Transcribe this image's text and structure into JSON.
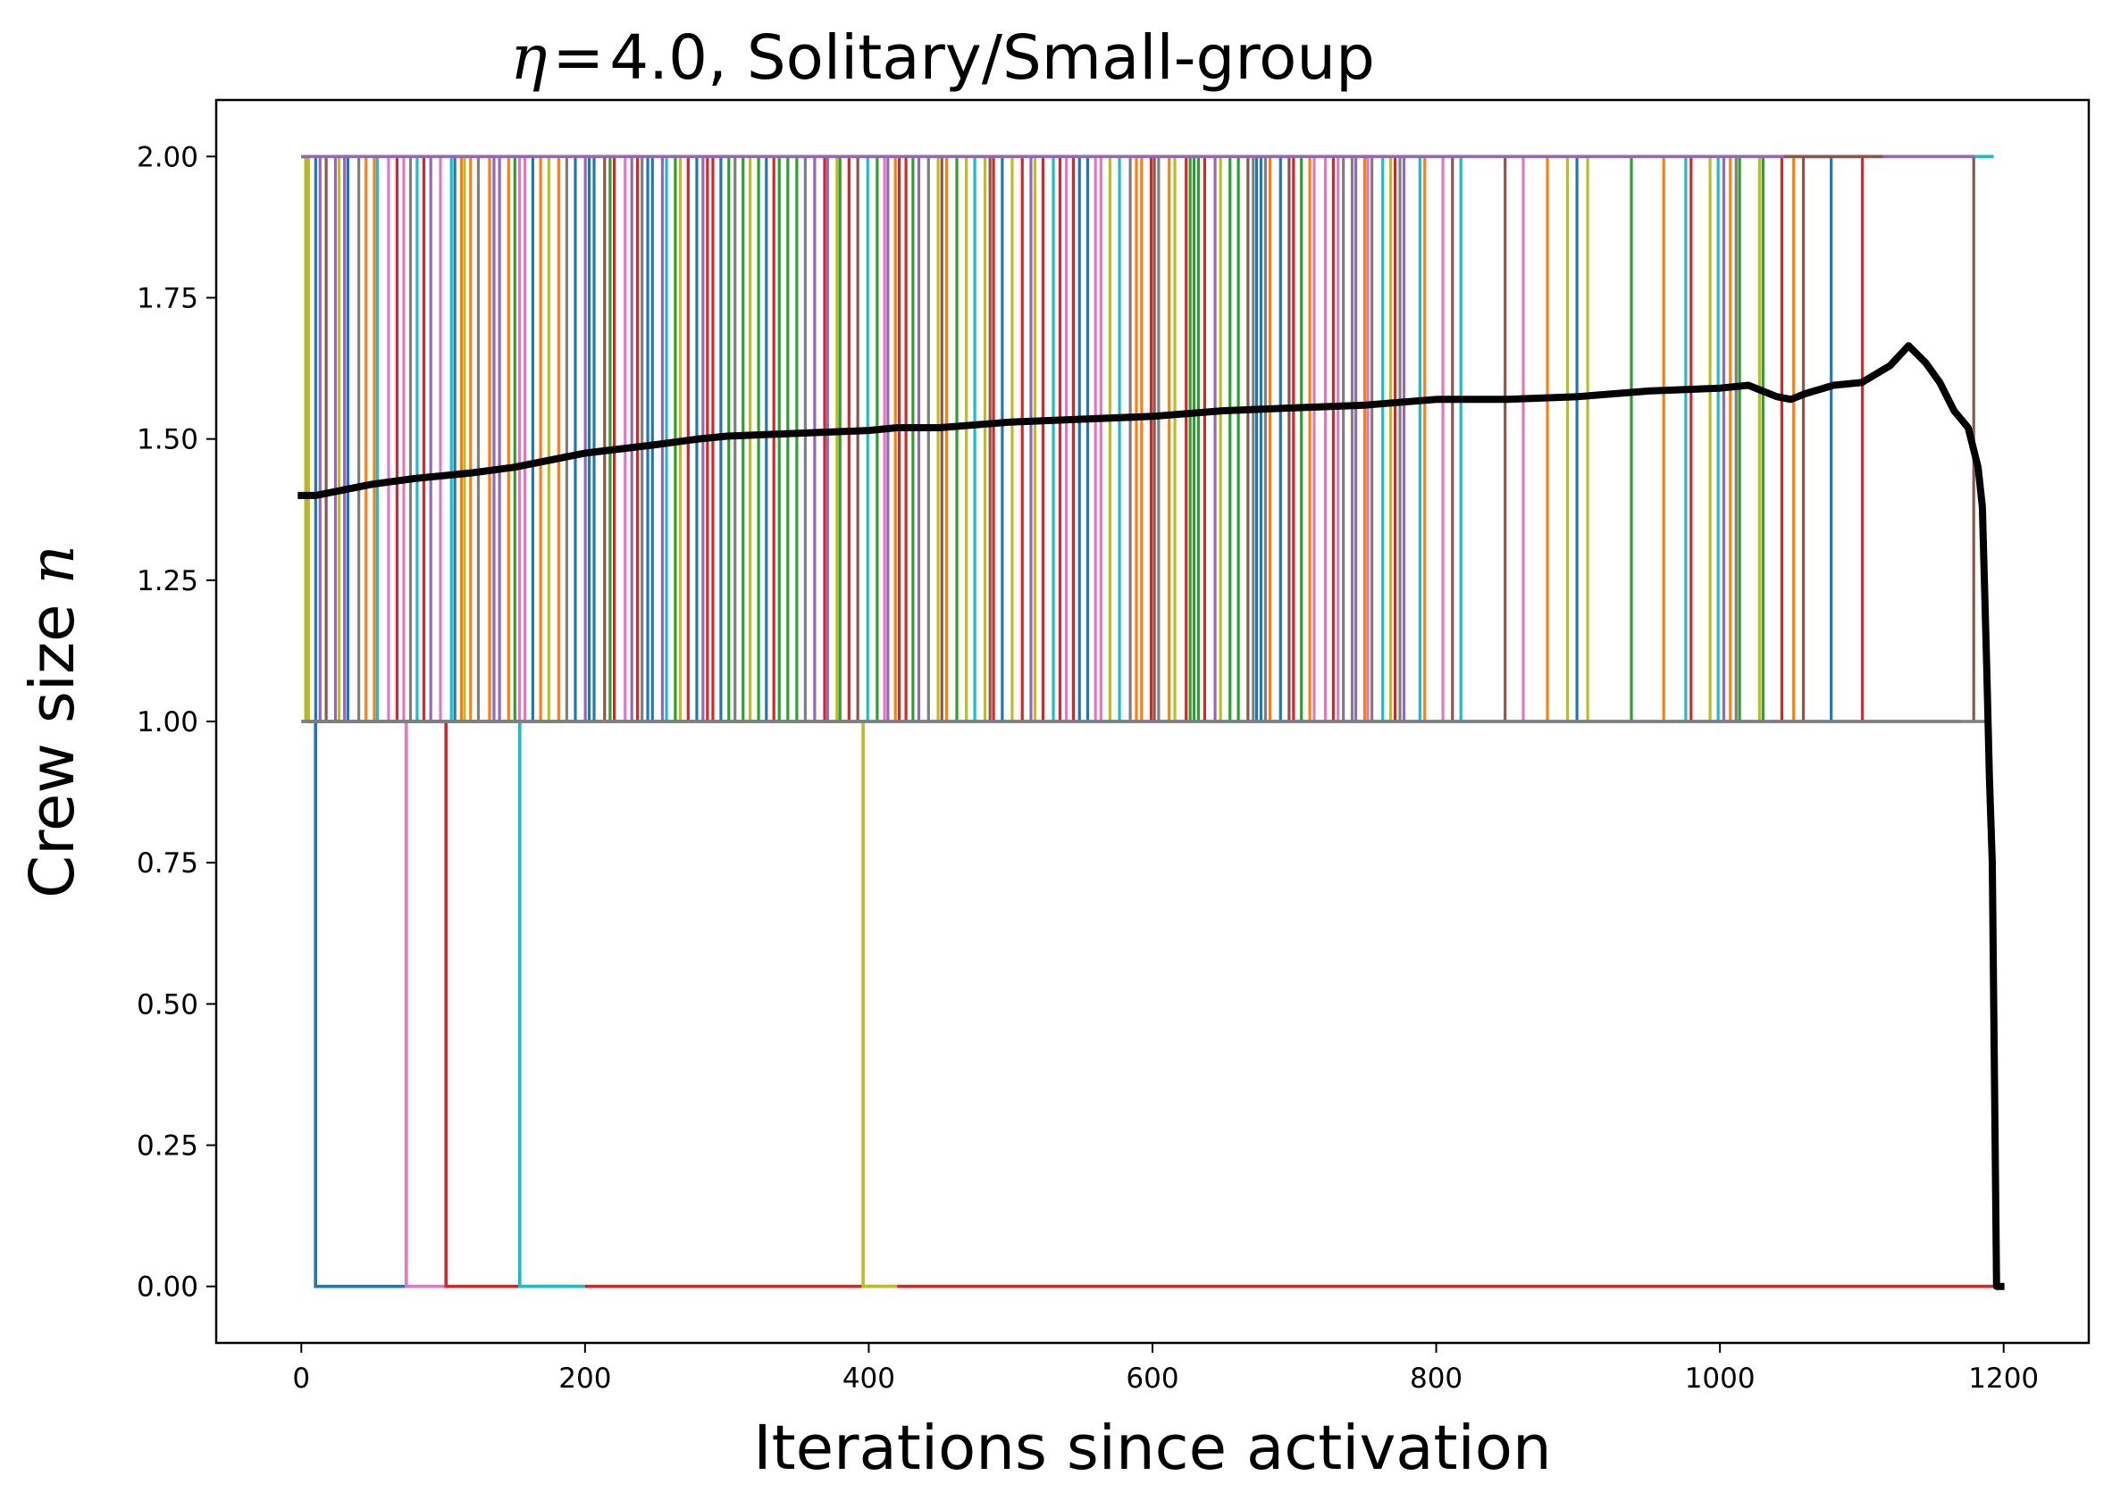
{
  "chart_data": {
    "type": "line",
    "title": {
      "symbol": "η",
      "equals": "=",
      "text": "4.0, Solitary/Small-group"
    },
    "xlabel": "Iterations since activation",
    "ylabel": {
      "text": "Crew size ",
      "symbol": "n"
    },
    "xlim": [
      -60,
      1260
    ],
    "ylim": [
      -0.1,
      2.1
    ],
    "xticks": [
      0,
      200,
      400,
      600,
      800,
      1000,
      1200
    ],
    "xtick_labels": [
      "0",
      "200",
      "400",
      "600",
      "800",
      "1000",
      "1200"
    ],
    "yticks": [
      0.0,
      0.25,
      0.5,
      0.75,
      1.0,
      1.25,
      1.5,
      1.75,
      2.0
    ],
    "ytick_labels": [
      "0.00",
      "0.25",
      "0.50",
      "0.75",
      "1.00",
      "1.25",
      "1.50",
      "1.75",
      "2.00"
    ],
    "grid": false,
    "palette": [
      "#1f77b4",
      "#ff7f0e",
      "#2ca02c",
      "#d62728",
      "#9467bd",
      "#8c564b",
      "#e377c2",
      "#7f7f7f",
      "#bcbd22",
      "#17becf"
    ],
    "series": [
      {
        "color": "#1f77b4",
        "points": [
          [
            0,
            2
          ],
          [
            5,
            2
          ],
          [
            5,
            1
          ],
          [
            10,
            1
          ],
          [
            10,
            0
          ],
          [
            75,
            0
          ]
        ]
      },
      {
        "color": "#e377c2",
        "points": [
          [
            0,
            2
          ],
          [
            5,
            2
          ],
          [
            5,
            1
          ],
          [
            74,
            1
          ],
          [
            74,
            0
          ],
          [
            102,
            0
          ]
        ]
      },
      {
        "color": "#d62728",
        "points": [
          [
            0,
            2
          ],
          [
            5,
            2
          ],
          [
            5,
            1
          ],
          [
            102,
            1
          ],
          [
            102,
            0
          ],
          [
            1198,
            0
          ]
        ]
      },
      {
        "color": "#17becf",
        "points": [
          [
            0,
            2
          ],
          [
            5,
            2
          ],
          [
            5,
            1
          ],
          [
            154,
            1
          ],
          [
            154,
            0
          ],
          [
            200,
            0
          ]
        ]
      },
      {
        "color": "#bcbd22",
        "points": [
          [
            0,
            2
          ],
          [
            5,
            2
          ],
          [
            5,
            1
          ],
          [
            396,
            1
          ],
          [
            396,
            0
          ],
          [
            420,
            0
          ]
        ]
      },
      {
        "color": "#1f77b4",
        "points": [
          [
            0,
            1
          ],
          [
            1170,
            1
          ]
        ]
      },
      {
        "color": "#7f7f7f",
        "points": [
          [
            0,
            1
          ],
          [
            1188,
            1
          ]
        ]
      },
      {
        "color": "#9467bd",
        "points": [
          [
            0,
            2
          ],
          [
            1185,
            2
          ]
        ]
      },
      {
        "color": "#8c564b",
        "points": [
          [
            1045,
            2
          ],
          [
            1115,
            2
          ]
        ]
      },
      {
        "color": "#17becf",
        "points": [
          [
            1180,
            2
          ],
          [
            1193,
            2
          ]
        ]
      }
    ],
    "toggle_lines": {
      "description_free": true,
      "x_start": 0,
      "x_end": 1190,
      "y_low": 1.0,
      "y_high": 2.0
    },
    "mean_series": {
      "color": "#000000",
      "points": [
        [
          0,
          1.4
        ],
        [
          10,
          1.4
        ],
        [
          30,
          1.41
        ],
        [
          50,
          1.42
        ],
        [
          80,
          1.43
        ],
        [
          120,
          1.44
        ],
        [
          150,
          1.45
        ],
        [
          200,
          1.475
        ],
        [
          250,
          1.49
        ],
        [
          280,
          1.5
        ],
        [
          300,
          1.505
        ],
        [
          350,
          1.51
        ],
        [
          400,
          1.515
        ],
        [
          420,
          1.52
        ],
        [
          450,
          1.52
        ],
        [
          500,
          1.53
        ],
        [
          550,
          1.535
        ],
        [
          600,
          1.54
        ],
        [
          650,
          1.55
        ],
        [
          700,
          1.555
        ],
        [
          750,
          1.56
        ],
        [
          800,
          1.57
        ],
        [
          850,
          1.57
        ],
        [
          900,
          1.575
        ],
        [
          950,
          1.585
        ],
        [
          1000,
          1.59
        ],
        [
          1020,
          1.595
        ],
        [
          1040,
          1.575
        ],
        [
          1050,
          1.57
        ],
        [
          1060,
          1.58
        ],
        [
          1080,
          1.595
        ],
        [
          1100,
          1.6
        ],
        [
          1120,
          1.63
        ],
        [
          1133,
          1.665
        ],
        [
          1145,
          1.635
        ],
        [
          1155,
          1.6
        ],
        [
          1165,
          1.55
        ],
        [
          1175,
          1.52
        ],
        [
          1182,
          1.45
        ],
        [
          1185,
          1.38
        ],
        [
          1188,
          1.1
        ],
        [
          1190,
          0.9
        ],
        [
          1192,
          0.75
        ],
        [
          1195,
          0.0
        ],
        [
          1198,
          0.0
        ]
      ]
    }
  }
}
